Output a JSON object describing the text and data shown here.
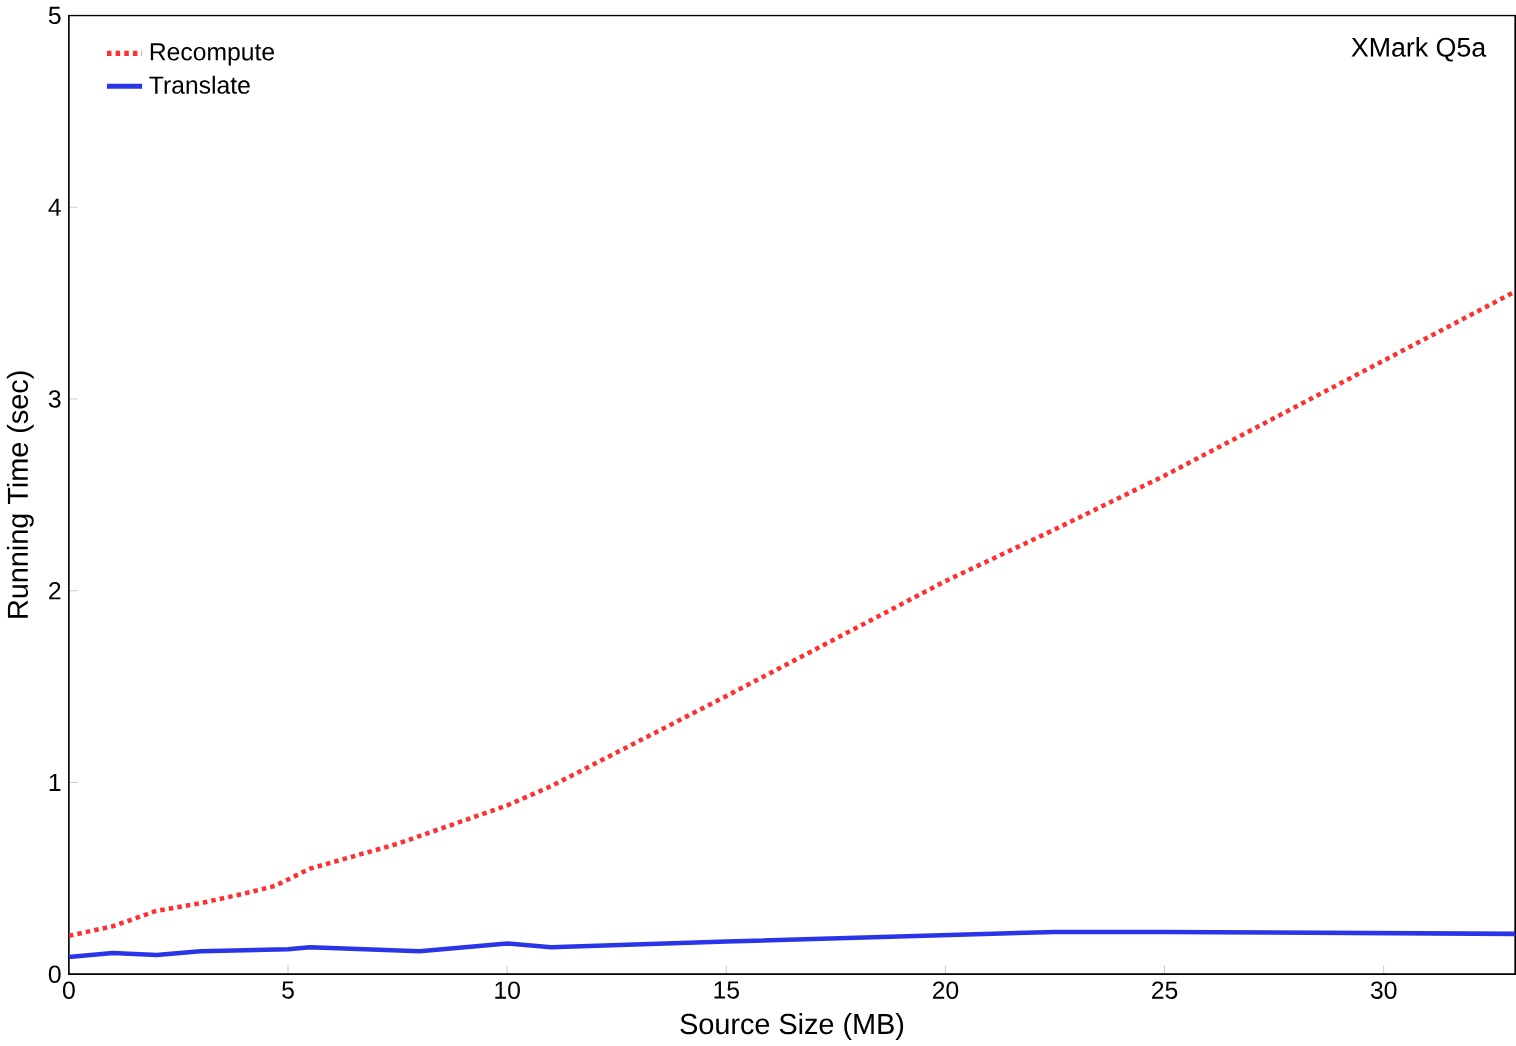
{
  "chart_data": {
    "type": "line",
    "title": "XMark Q5a",
    "xlabel": "Source Size (MB)",
    "ylabel": "Running Time (sec)",
    "xlim": [
      0,
      33
    ],
    "ylim": [
      0,
      5
    ],
    "xticks": [
      0,
      5,
      10,
      15,
      20,
      25,
      30
    ],
    "yticks": [
      0,
      1,
      2,
      3,
      4,
      5
    ],
    "legend": "top left",
    "marker": "none",
    "grid": false,
    "series": [
      {
        "name": "Recompute",
        "color": "#ff3030",
        "line_style": "dotted",
        "x": [
          0,
          1,
          2,
          3,
          4,
          4.7,
          5.5,
          7.5,
          10,
          11,
          15,
          20,
          22.5,
          25,
          30,
          33
        ],
        "values": [
          0.2,
          0.25,
          0.33,
          0.37,
          0.42,
          0.46,
          0.55,
          0.68,
          0.88,
          0.98,
          1.45,
          2.05,
          2.32,
          2.6,
          3.2,
          3.56
        ]
      },
      {
        "name": "Translate",
        "color": "#2b35e8",
        "line_style": "solid",
        "x": [
          0,
          0.5,
          1,
          2,
          3,
          5,
          5.5,
          8,
          10,
          11,
          15,
          22.5,
          25,
          33
        ],
        "values": [
          0.09,
          0.1,
          0.11,
          0.1,
          0.12,
          0.13,
          0.14,
          0.12,
          0.16,
          0.14,
          0.17,
          0.22,
          0.22,
          0.21
        ]
      }
    ]
  }
}
